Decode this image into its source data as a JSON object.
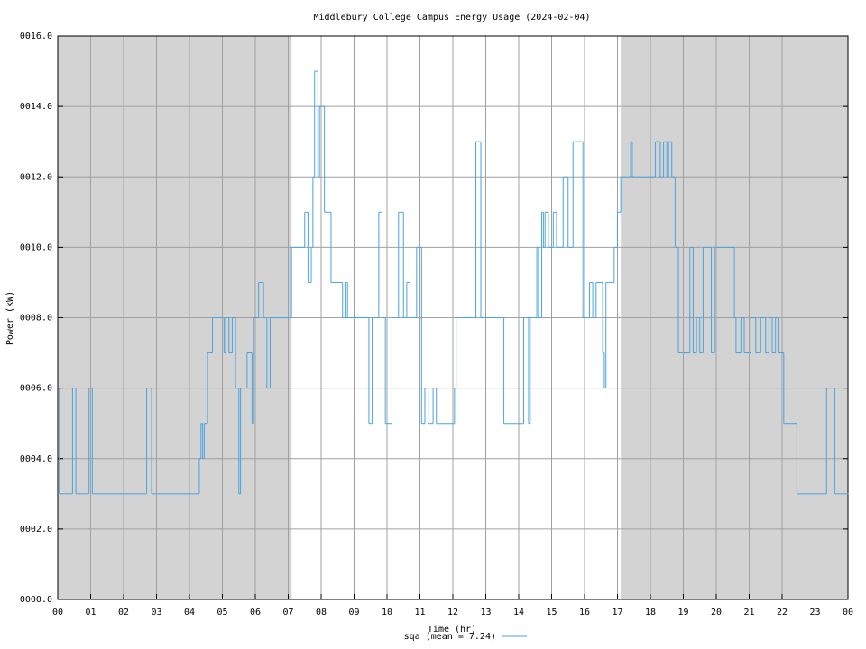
{
  "chart_data": {
    "type": "line",
    "title": "Middlebury College Campus Energy Usage (2024-02-04)",
    "xlabel": "Time (hr)",
    "ylabel": "Power (kW)",
    "xlim": [
      0,
      24
    ],
    "ylim": [
      0,
      16
    ],
    "xticks": [
      {
        "value": 0,
        "label": "00"
      },
      {
        "value": 1,
        "label": "01"
      },
      {
        "value": 2,
        "label": "02"
      },
      {
        "value": 3,
        "label": "03"
      },
      {
        "value": 4,
        "label": "04"
      },
      {
        "value": 5,
        "label": "05"
      },
      {
        "value": 6,
        "label": "06"
      },
      {
        "value": 7,
        "label": "07"
      },
      {
        "value": 8,
        "label": "08"
      },
      {
        "value": 9,
        "label": "09"
      },
      {
        "value": 10,
        "label": "10"
      },
      {
        "value": 11,
        "label": "11"
      },
      {
        "value": 12,
        "label": "12"
      },
      {
        "value": 13,
        "label": "13"
      },
      {
        "value": 14,
        "label": "14"
      },
      {
        "value": 15,
        "label": "15"
      },
      {
        "value": 16,
        "label": "16"
      },
      {
        "value": 17,
        "label": "17"
      },
      {
        "value": 18,
        "label": "18"
      },
      {
        "value": 19,
        "label": "19"
      },
      {
        "value": 20,
        "label": "20"
      },
      {
        "value": 21,
        "label": "21"
      },
      {
        "value": 22,
        "label": "22"
      },
      {
        "value": 23,
        "label": "23"
      },
      {
        "value": 24,
        "label": "00"
      }
    ],
    "yticks": [
      {
        "value": 0,
        "label": "0000.0"
      },
      {
        "value": 2,
        "label": "0002.0"
      },
      {
        "value": 4,
        "label": "0004.0"
      },
      {
        "value": 6,
        "label": "0006.0"
      },
      {
        "value": 8,
        "label": "0008.0"
      },
      {
        "value": 10,
        "label": "0010.0"
      },
      {
        "value": 12,
        "label": "0012.0"
      },
      {
        "value": 14,
        "label": "0014.0"
      },
      {
        "value": 16,
        "label": "0016.0"
      }
    ],
    "grid": true,
    "shade_color": "#d3d3d3",
    "night_spans": [
      [
        0,
        7.1
      ],
      [
        17.1,
        24
      ]
    ],
    "series": [
      {
        "name": "sqa (mean = 7.24)",
        "color": "#4aa3df",
        "x": [
          0,
          0.05,
          0.45,
          0.55,
          0.95,
          1.05,
          2.7,
          2.85,
          4.3,
          4.35,
          4.4,
          4.45,
          4.55,
          4.7,
          5.05,
          5.1,
          5.2,
          5.3,
          5.4,
          5.5,
          5.55,
          5.75,
          5.9,
          5.95,
          6.1,
          6.25,
          6.35,
          6.45,
          7.1,
          7.5,
          7.6,
          7.7,
          7.75,
          7.8,
          7.9,
          7.95,
          8.1,
          8.3,
          8.65,
          8.75,
          8.8,
          9.45,
          9.55,
          9.75,
          9.85,
          9.95,
          10.15,
          10.35,
          10.5,
          10.6,
          10.7,
          10.9,
          11.05,
          11.15,
          11.25,
          11.4,
          11.5,
          12.05,
          12.1,
          12.7,
          12.85,
          13.55,
          14.15,
          14.3,
          14.35,
          14.55,
          14.6,
          14.7,
          14.75,
          14.8,
          14.9,
          15.05,
          15.15,
          15.35,
          15.5,
          15.65,
          15.95,
          16.15,
          16.25,
          16.35,
          16.55,
          16.6,
          16.65,
          16.9,
          17.0,
          17.1,
          17.4,
          17.45,
          18.15,
          18.3,
          18.4,
          18.5,
          18.55,
          18.65,
          18.75,
          18.85,
          19.2,
          19.3,
          19.4,
          19.5,
          19.6,
          19.85,
          19.95,
          20.55,
          20.6,
          20.75,
          20.85,
          21.05,
          21.2,
          21.35,
          21.5,
          21.6,
          21.7,
          21.8,
          21.9,
          22.05,
          22.45,
          23.35,
          23.6,
          24
        ],
        "values": [
          6,
          3,
          6,
          3,
          6,
          3,
          6,
          3,
          4,
          5,
          4,
          5,
          7,
          8,
          7,
          8,
          7,
          8,
          6,
          3,
          6,
          7,
          5,
          8,
          9,
          8,
          6,
          8,
          10,
          11,
          9,
          10,
          12,
          15,
          12,
          14,
          11,
          9,
          8,
          9,
          8,
          5,
          8,
          11,
          8,
          5,
          8,
          11,
          8,
          9,
          8,
          10,
          5,
          6,
          5,
          6,
          5,
          6,
          8,
          13,
          8,
          5,
          8,
          5,
          8,
          10,
          8,
          11,
          10,
          11,
          10,
          11,
          10,
          12,
          10,
          13,
          8,
          9,
          8,
          9,
          7,
          6,
          9,
          10,
          11,
          12,
          13,
          12,
          13,
          12,
          13,
          12,
          13,
          12,
          10,
          7,
          10,
          7,
          8,
          7,
          10,
          7,
          10,
          8,
          7,
          8,
          7,
          8,
          7,
          8,
          7,
          8,
          7,
          8,
          7,
          5,
          3,
          6,
          3,
          3
        ]
      }
    ]
  }
}
